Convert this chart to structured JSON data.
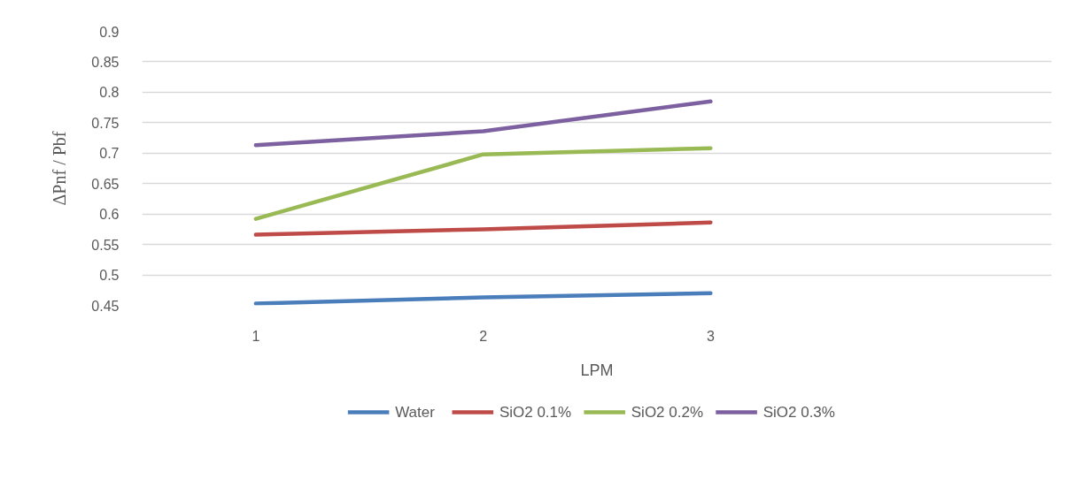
{
  "chart_data": {
    "type": "line",
    "xlabel": "LPM",
    "ylabel": "ΔPnf / Pbf",
    "x": [
      1,
      2,
      3
    ],
    "xlim": [
      0.5,
      4.5
    ],
    "xticks": [
      1,
      2,
      3
    ],
    "ylim": [
      0.45,
      0.9
    ],
    "yticks": [
      0.45,
      0.5,
      0.55,
      0.6,
      0.65,
      0.7,
      0.75,
      0.8,
      0.85,
      0.9
    ],
    "grid": "y",
    "legend": "bottom",
    "marker": "none",
    "line_style": "solid",
    "series": [
      {
        "name": "Water",
        "color": "#4a7ebb",
        "values": [
          0.453,
          0.463,
          0.47
        ]
      },
      {
        "name": "SiO2 0.1%",
        "color": "#be4b48",
        "values": [
          0.566,
          0.575,
          0.586
        ]
      },
      {
        "name": "SiO2 0.2%",
        "color": "#98b954",
        "values": [
          0.592,
          0.698,
          0.708
        ]
      },
      {
        "name": "SiO2 0.3%",
        "color": "#7d60a0",
        "values": [
          0.713,
          0.736,
          0.785
        ]
      }
    ]
  }
}
